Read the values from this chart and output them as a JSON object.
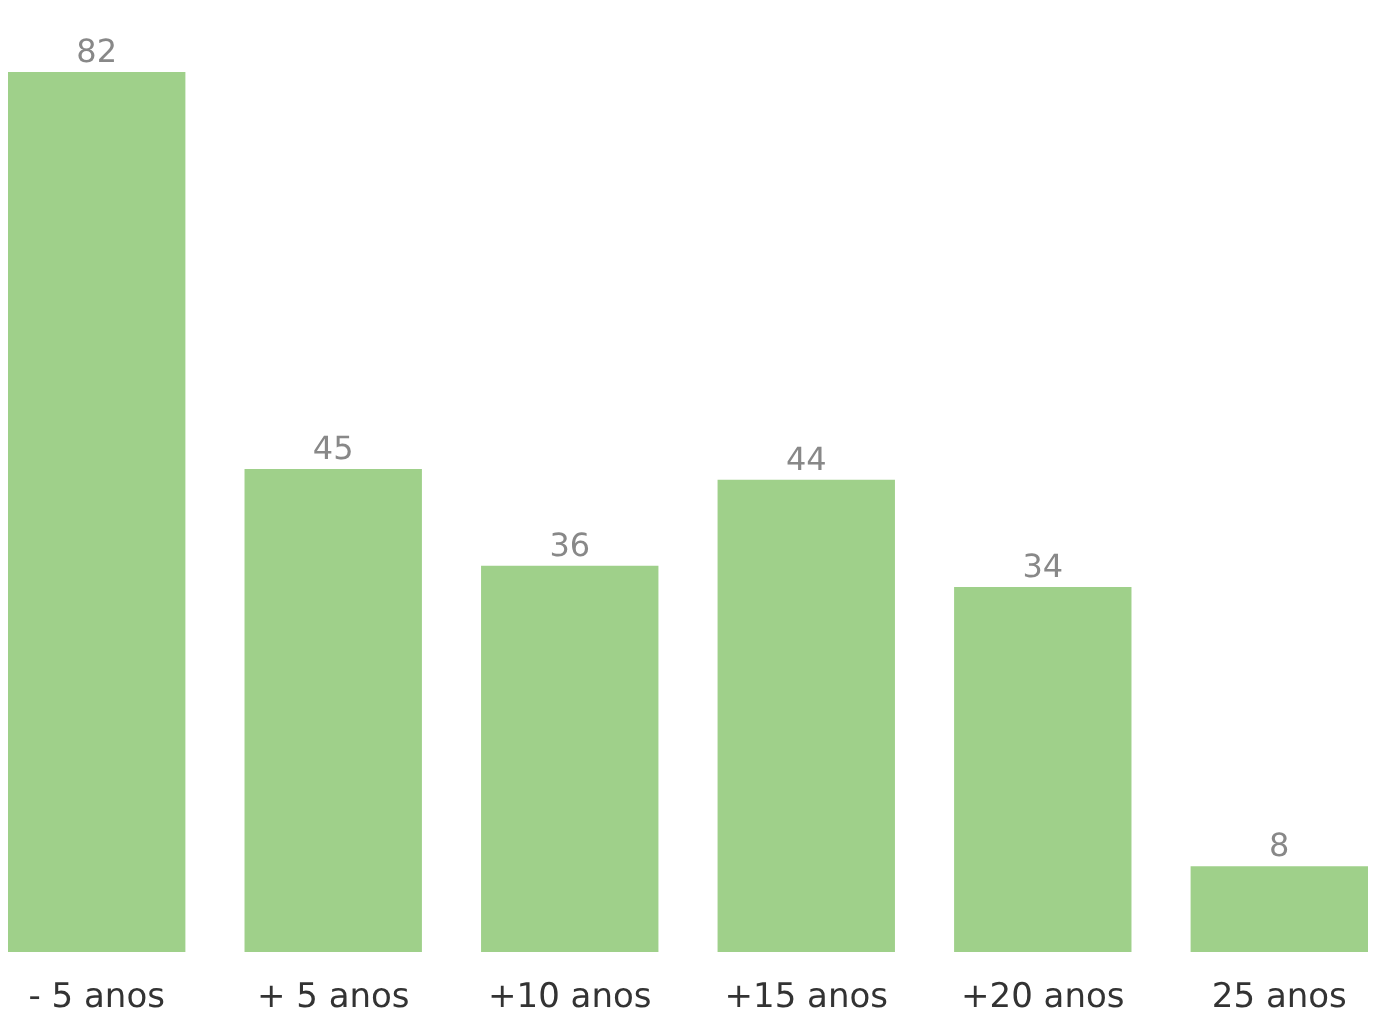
{
  "chart_data": {
    "type": "bar",
    "categories": [
      "- 5 anos",
      "+ 5 anos",
      "+10 anos",
      "+15 anos",
      "+20 anos",
      "25 anos"
    ],
    "values": [
      82,
      45,
      36,
      44,
      34,
      8
    ],
    "color": "#9fd08a",
    "data_labels": true,
    "tick_labels": "x"
  }
}
